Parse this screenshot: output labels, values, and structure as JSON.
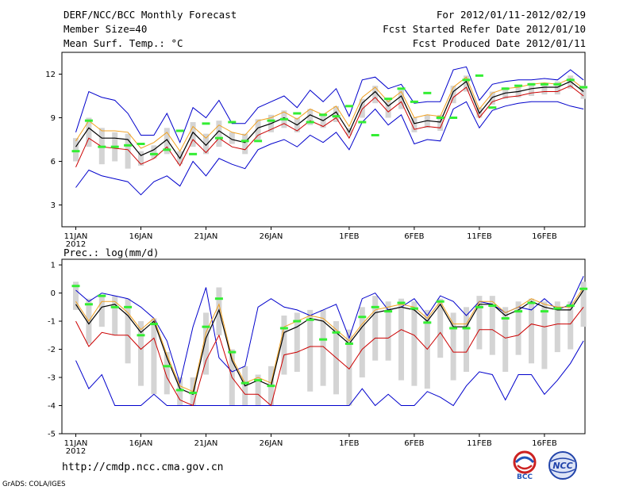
{
  "header": {
    "title": "DERF/NCC/BCC Monthly Forecast",
    "member_size": "Member Size=40",
    "variable": "Mean Surf. Temp.: °C",
    "period": "For 2012/01/11-2012/02/19",
    "started": "Fcst Started Refer Date 2012/01/10",
    "produced": "Fcst Produced Date 2012/01/11"
  },
  "precip_label": "Prec.: log(mm/d)",
  "footer": {
    "url": "http://cmdp.ncc.cma.gov.cn",
    "grads": "GrADS: COLA/IGES"
  },
  "logos": {
    "bcc": "BCC",
    "ncc": "NCC"
  },
  "colors": {
    "envelope": "#0000cc",
    "mean": "#000000",
    "red": "#cc0000",
    "orange": "#f0a020",
    "bar": "#d4d4d4",
    "marker": "#33ee33"
  },
  "chart_data": [
    {
      "type": "line",
      "title": "Mean Surf. Temp.: °C",
      "x_tick_labels": [
        "11JAN",
        "16JAN",
        "21JAN",
        "26JAN",
        "1FEB",
        "6FEB",
        "11FEB",
        "16FEB"
      ],
      "x_tick_days": [
        1,
        6,
        11,
        16,
        22,
        27,
        32,
        37
      ],
      "year_label": "2012",
      "ylim": [
        1.5,
        13.5
      ],
      "y_ticks": [
        3,
        6,
        9,
        12
      ],
      "days": [
        1,
        2,
        3,
        4,
        5,
        6,
        7,
        8,
        9,
        10,
        11,
        12,
        13,
        14,
        15,
        16,
        17,
        18,
        19,
        20,
        21,
        22,
        23,
        24,
        25,
        26,
        27,
        28,
        29,
        30,
        31,
        32,
        33,
        34,
        35,
        36,
        37,
        38,
        39,
        40
      ],
      "series": [
        {
          "name": "Max",
          "values": [
            8.0,
            10.8,
            10.4,
            10.2,
            9.3,
            7.8,
            7.8,
            9.3,
            7.3,
            9.7,
            9.0,
            10.2,
            8.6,
            8.6,
            9.7,
            10.1,
            10.5,
            9.7,
            10.9,
            10.1,
            11.0,
            9.1,
            11.6,
            11.8,
            11.0,
            11.3,
            10.0,
            10.1,
            10.1,
            12.3,
            12.5,
            10.2,
            11.3,
            11.5,
            11.6,
            11.6,
            11.7,
            11.6,
            12.3,
            11.6
          ]
        },
        {
          "name": "Ensemble mean",
          "values": [
            7.0,
            8.3,
            7.6,
            7.6,
            7.5,
            6.4,
            6.8,
            7.5,
            6.2,
            8.0,
            7.1,
            8.1,
            7.5,
            7.3,
            8.3,
            8.6,
            9.0,
            8.5,
            9.2,
            8.8,
            9.4,
            8.0,
            10.0,
            10.8,
            9.8,
            10.5,
            8.6,
            8.8,
            8.7,
            10.8,
            11.5,
            9.3,
            10.4,
            10.7,
            10.8,
            11.0,
            11.1,
            11.1,
            11.5,
            10.8
          ]
        },
        {
          "name": "Upper (red)",
          "values": [
            7.4,
            8.8,
            8.1,
            8.1,
            8.0,
            6.9,
            7.3,
            8.0,
            6.7,
            8.4,
            7.6,
            8.5,
            8.0,
            7.8,
            8.8,
            9.0,
            9.4,
            8.9,
            9.6,
            9.2,
            9.8,
            8.4,
            10.4,
            11.1,
            10.1,
            10.8,
            9.0,
            9.2,
            9.1,
            11.1,
            11.8,
            9.6,
            10.7,
            11.0,
            11.1,
            11.3,
            11.4,
            11.3,
            11.7,
            11.0
          ]
        },
        {
          "name": "Lower (red)",
          "values": [
            5.6,
            7.6,
            7.0,
            6.9,
            6.8,
            5.8,
            6.2,
            7.0,
            5.7,
            7.5,
            6.6,
            7.6,
            7.0,
            6.8,
            7.8,
            8.2,
            8.6,
            8.1,
            8.8,
            8.4,
            9.0,
            7.6,
            9.6,
            10.4,
            9.4,
            10.1,
            8.2,
            8.4,
            8.3,
            10.4,
            11.1,
            9.0,
            10.1,
            10.4,
            10.5,
            10.7,
            10.8,
            10.8,
            11.2,
            10.5
          ]
        },
        {
          "name": "Min",
          "values": [
            4.2,
            5.4,
            5.0,
            4.8,
            4.6,
            3.7,
            4.6,
            5.0,
            4.3,
            6.0,
            5.0,
            6.2,
            5.8,
            5.5,
            6.8,
            7.2,
            7.5,
            7.0,
            7.8,
            7.3,
            8.0,
            6.8,
            8.7,
            9.6,
            8.5,
            9.2,
            7.2,
            7.5,
            7.4,
            9.6,
            10.1,
            8.3,
            9.5,
            9.8,
            10.0,
            10.1,
            10.1,
            10.1,
            9.8,
            9.6
          ]
        },
        {
          "name": "Boxes low",
          "values": [
            6.0,
            7.0,
            5.8,
            6.0,
            5.5,
            5.7,
            6.2,
            6.5,
            5.8,
            7.0,
            6.5,
            7.0,
            7.2,
            6.5,
            7.5,
            8.0,
            8.3,
            8.0,
            8.5,
            8.3,
            8.7,
            7.8,
            9.0,
            10.0,
            9.0,
            9.6,
            8.0,
            8.3,
            8.1,
            10.0,
            10.8,
            9.0,
            9.9,
            10.3,
            10.4,
            10.5,
            10.6,
            10.6,
            11.0,
            10.3
          ]
        },
        {
          "name": "Boxes high",
          "values": [
            7.6,
            9.0,
            8.3,
            8.0,
            7.9,
            6.7,
            7.1,
            8.3,
            6.7,
            8.7,
            7.9,
            8.8,
            8.0,
            7.9,
            8.9,
            9.2,
            9.5,
            9.0,
            9.6,
            9.3,
            9.8,
            8.3,
            10.3,
            11.2,
            10.2,
            10.9,
            9.0,
            9.2,
            9.2,
            11.2,
            11.9,
            9.7,
            10.8,
            11.1,
            11.2,
            11.4,
            11.4,
            11.5,
            11.9,
            11.2
          ]
        },
        {
          "name": "Markers",
          "values": [
            6.7,
            8.8,
            7.0,
            7.0,
            7.1,
            7.2,
            6.5,
            6.8,
            8.1,
            6.5,
            8.6,
            7.6,
            8.7,
            7.4,
            7.4,
            8.8,
            8.9,
            9.3,
            8.7,
            9.2,
            9.1,
            9.8,
            8.7,
            7.8,
            10.3,
            11.0,
            10.1,
            10.7,
            9.0,
            9.0,
            11.6,
            11.9,
            9.7,
            11.0,
            11.2,
            11.3,
            11.3,
            11.3,
            11.6,
            11.1
          ]
        }
      ]
    },
    {
      "type": "line",
      "title": "Prec.: log(mm/d)",
      "x_tick_labels": [
        "11JAN",
        "16JAN",
        "21JAN",
        "26JAN",
        "1FEB",
        "6FEB",
        "11FEB",
        "16FEB"
      ],
      "x_tick_days": [
        1,
        6,
        11,
        16,
        22,
        27,
        32,
        37
      ],
      "year_label": "2012",
      "ylim": [
        -5,
        1.2
      ],
      "y_ticks": [
        -5,
        -4,
        -3,
        -2,
        -1,
        0,
        1
      ],
      "days": [
        1,
        2,
        3,
        4,
        5,
        6,
        7,
        8,
        9,
        10,
        11,
        12,
        13,
        14,
        15,
        16,
        17,
        18,
        19,
        20,
        21,
        22,
        23,
        24,
        25,
        26,
        27,
        28,
        29,
        30,
        31,
        32,
        33,
        34,
        35,
        36,
        37,
        38,
        39,
        40
      ],
      "series": [
        {
          "name": "Max",
          "values": [
            0.1,
            -0.3,
            0.0,
            -0.1,
            -0.2,
            -0.5,
            -0.9,
            -1.7,
            -3.2,
            -1.2,
            0.2,
            -2.3,
            -2.8,
            -2.6,
            -0.5,
            -0.2,
            -0.5,
            -0.6,
            -0.8,
            -0.6,
            -0.4,
            -1.6,
            -0.2,
            0.0,
            -0.6,
            -0.5,
            -0.2,
            -0.8,
            -0.1,
            -0.3,
            -0.8,
            -0.3,
            -0.4,
            -0.7,
            -0.5,
            -0.6,
            -0.2,
            -0.6,
            -0.4,
            0.6
          ]
        },
        {
          "name": "Ensemble mean",
          "values": [
            -0.4,
            -1.1,
            -0.5,
            -0.4,
            -0.8,
            -1.4,
            -1.0,
            -2.3,
            -3.4,
            -3.6,
            -1.6,
            -0.6,
            -2.4,
            -3.3,
            -3.1,
            -3.3,
            -1.4,
            -1.2,
            -0.9,
            -1.0,
            -1.4,
            -1.8,
            -1.2,
            -0.7,
            -0.6,
            -0.5,
            -0.6,
            -1.0,
            -0.4,
            -1.2,
            -1.2,
            -0.4,
            -0.4,
            -0.8,
            -0.6,
            -0.3,
            -0.5,
            -0.6,
            -0.6,
            0.1
          ]
        },
        {
          "name": "Upper (red)",
          "values": [
            -0.3,
            -1.0,
            -0.3,
            -0.3,
            -0.7,
            -1.3,
            -0.9,
            -2.2,
            -3.3,
            -3.5,
            -1.4,
            -0.4,
            -2.3,
            -3.2,
            -3.0,
            -3.2,
            -1.2,
            -1.0,
            -0.8,
            -0.9,
            -1.3,
            -1.7,
            -1.1,
            -0.6,
            -0.5,
            -0.4,
            -0.5,
            -0.9,
            -0.3,
            -1.1,
            -1.1,
            -0.3,
            -0.3,
            -0.7,
            -0.5,
            -0.2,
            -0.4,
            -0.5,
            -0.5,
            0.2
          ]
        },
        {
          "name": "Lower (red)",
          "values": [
            -1.0,
            -1.9,
            -1.4,
            -1.5,
            -1.5,
            -2.0,
            -1.6,
            -3.0,
            -3.8,
            -4.0,
            -2.4,
            -1.5,
            -3.0,
            -3.6,
            -3.6,
            -4.0,
            -2.2,
            -2.1,
            -1.9,
            -1.9,
            -2.3,
            -2.7,
            -2.0,
            -1.6,
            -1.6,
            -1.3,
            -1.5,
            -2.0,
            -1.4,
            -2.1,
            -2.1,
            -1.3,
            -1.3,
            -1.6,
            -1.5,
            -1.1,
            -1.2,
            -1.1,
            -1.1,
            -0.5
          ]
        },
        {
          "name": "Min",
          "values": [
            -2.4,
            -3.4,
            -2.9,
            -4.0,
            -4.0,
            -4.0,
            -3.6,
            -4.0,
            -4.0,
            -4.0,
            -4.0,
            -4.0,
            -4.0,
            -4.0,
            -4.0,
            -4.0,
            -4.0,
            -4.0,
            -4.0,
            -4.0,
            -4.0,
            -4.0,
            -3.4,
            -4.0,
            -3.6,
            -4.0,
            -4.0,
            -3.5,
            -3.7,
            -4.0,
            -3.3,
            -2.8,
            -2.9,
            -3.8,
            -2.9,
            -2.9,
            -3.6,
            -3.1,
            -2.5,
            -1.7
          ]
        },
        {
          "name": "Boxes low",
          "values": [
            -0.6,
            -1.8,
            -1.2,
            -1.5,
            -2.5,
            -3.3,
            -3.6,
            -3.6,
            -4.0,
            -4.0,
            -2.9,
            -1.5,
            -4.0,
            -4.0,
            -4.0,
            -4.0,
            -2.9,
            -2.8,
            -3.5,
            -3.3,
            -3.6,
            -4.0,
            -3.0,
            -2.4,
            -2.4,
            -3.1,
            -3.3,
            -3.4,
            -2.3,
            -3.1,
            -2.8,
            -2.0,
            -2.2,
            -2.8,
            -2.2,
            -2.5,
            -2.7,
            -2.1,
            -2.0,
            -1.2
          ]
        },
        {
          "name": "Boxes high",
          "values": [
            0.4,
            -0.2,
            -0.1,
            -0.1,
            -0.2,
            -1.0,
            -0.9,
            -2.1,
            -3.0,
            -3.0,
            -0.7,
            0.2,
            -2.0,
            -2.6,
            -2.9,
            -2.6,
            -0.8,
            -0.7,
            -0.6,
            -0.6,
            -1.0,
            -1.3,
            -0.5,
            -0.1,
            -0.3,
            -0.2,
            -0.3,
            -0.6,
            -0.2,
            -0.7,
            -0.5,
            -0.1,
            -0.1,
            -0.5,
            -0.3,
            -0.2,
            -0.3,
            -0.3,
            -0.3,
            0.4
          ]
        },
        {
          "name": "Markers",
          "values": [
            0.25,
            -0.4,
            -0.1,
            -0.5,
            -0.5,
            -1.5,
            -1.1,
            -2.6,
            -3.45,
            -3.55,
            -1.2,
            -0.2,
            -2.1,
            -3.2,
            -3.1,
            -3.3,
            -1.25,
            -1.0,
            -0.95,
            -1.65,
            -1.4,
            -1.8,
            -0.85,
            -0.5,
            -0.65,
            -0.35,
            -0.55,
            -1.05,
            -0.3,
            -1.25,
            -1.25,
            -0.5,
            -0.45,
            -0.9,
            -0.65,
            -0.35,
            -0.65,
            -0.55,
            -0.45,
            0.15
          ]
        }
      ]
    }
  ]
}
